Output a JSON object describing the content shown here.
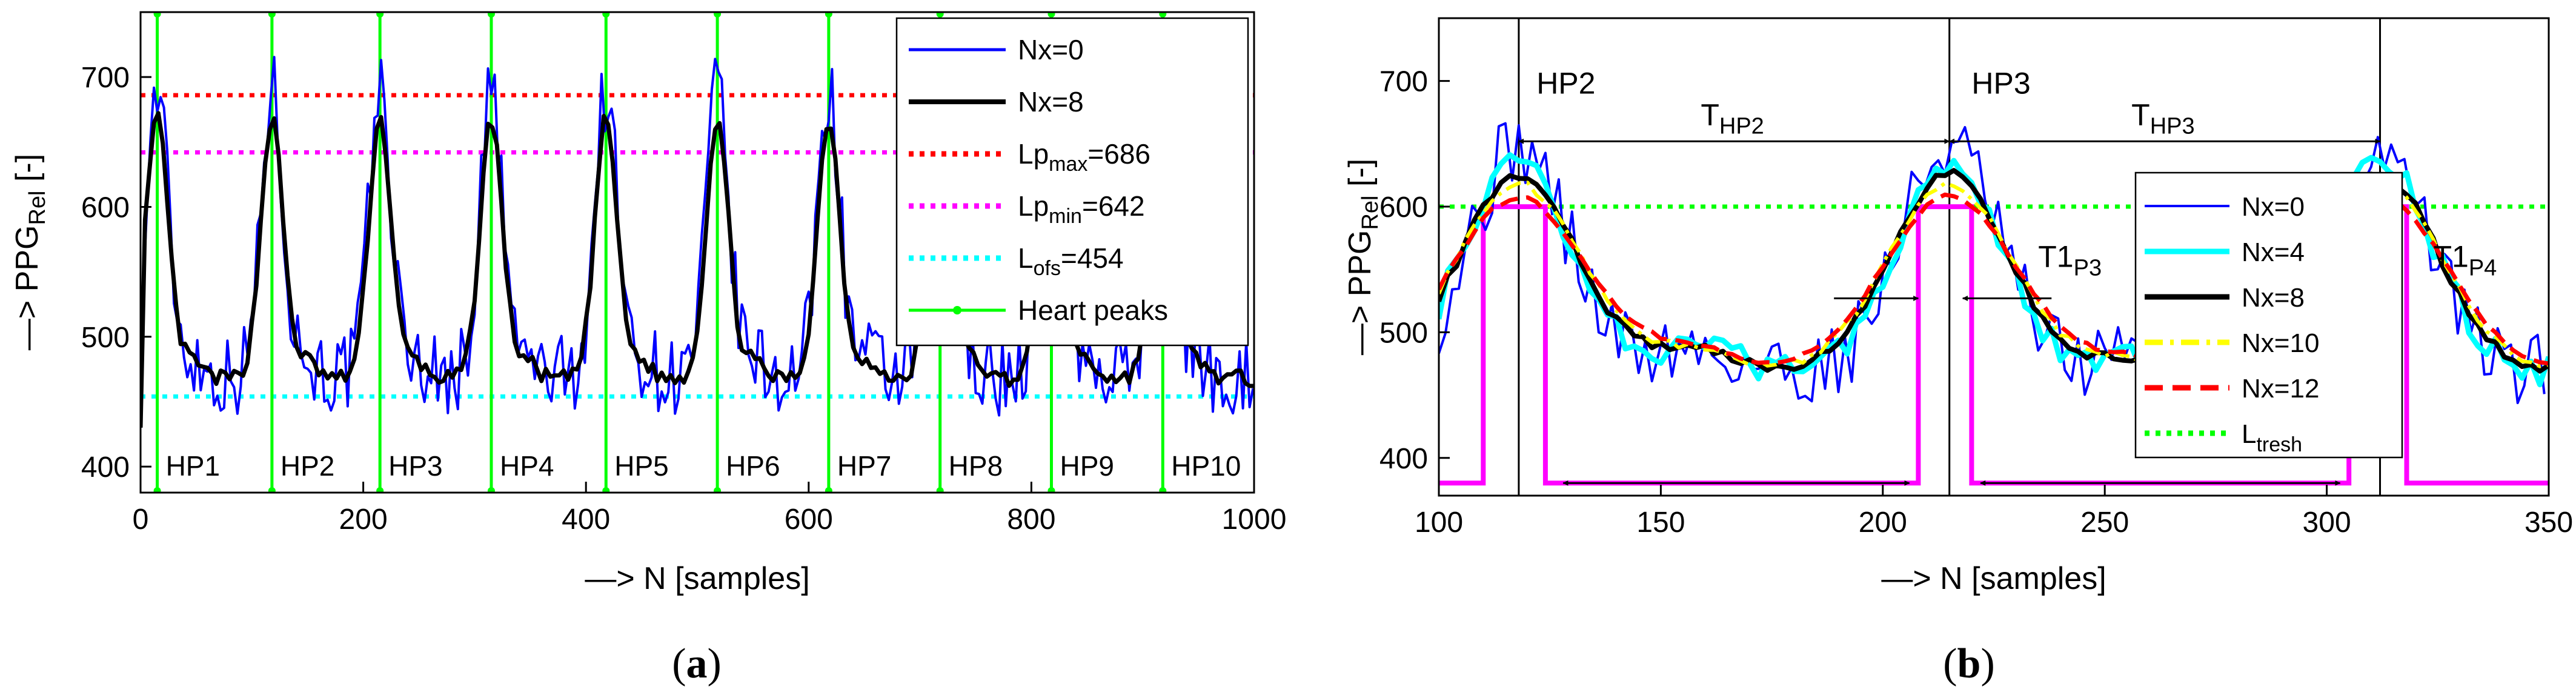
{
  "chart_data": [
    {
      "panel": "a",
      "type": "line",
      "panel_label_open": "(",
      "panel_label": "a",
      "panel_label_close": ")",
      "xlabel": "—> N [samples]",
      "ylabel_prefix": "—> PPG",
      "ylabel_sub": "Rel",
      "ylabel_suffix": " [-]",
      "xlim": [
        0,
        1000
      ],
      "ylim": [
        380,
        750
      ],
      "xticks": [
        "0",
        "200",
        "400",
        "600",
        "800",
        "1000"
      ],
      "xtick_values": [
        0,
        200,
        400,
        600,
        800,
        1000
      ],
      "yticks": [
        "400",
        "500",
        "600",
        "700"
      ],
      "ytick_values": [
        400,
        500,
        600,
        700
      ],
      "heart_peaks": [
        15,
        118,
        215,
        315,
        418,
        518,
        618,
        718,
        818,
        918
      ],
      "hp_labels": [
        "HP1",
        "HP2",
        "HP3",
        "HP4",
        "HP5",
        "HP6",
        "HP7",
        "HP8",
        "HP9",
        "HP10"
      ],
      "hlines": {
        "lp_max": 686,
        "lp_min": 642,
        "l_ofs": 454
      },
      "series": [
        {
          "name": "Nx=0",
          "color": "#0000ff",
          "baseline": 470,
          "peak": 690,
          "noise": 32
        },
        {
          "name": "Nx=8",
          "color": "#000000",
          "baseline": 468,
          "peak": 668,
          "noise": 6
        }
      ],
      "legend": [
        {
          "text": "Nx=0",
          "sub": "",
          "suffix": "",
          "color": "#0000ff",
          "style": "solid"
        },
        {
          "text": "Nx=8",
          "sub": "",
          "suffix": "",
          "color": "#000000",
          "style": "solid"
        },
        {
          "text": "Lp",
          "sub": "max",
          "suffix": "=686",
          "color": "#ff0000",
          "style": "dotted"
        },
        {
          "text": "Lp",
          "sub": "min",
          "suffix": "=642",
          "color": "#ff00ff",
          "style": "dotted"
        },
        {
          "text": "L",
          "sub": "ofs",
          "suffix": "=454",
          "color": "#00ffff",
          "style": "dotted"
        },
        {
          "text": "Heart peaks",
          "sub": "",
          "suffix": "",
          "color": "#00ff00",
          "style": "marker"
        }
      ]
    },
    {
      "panel": "b",
      "type": "line",
      "panel_label_open": "(",
      "panel_label": "b",
      "panel_label_close": ")",
      "xlabel": "—> N [samples]",
      "ylabel_prefix": "—> PPG",
      "ylabel_sub": "Rel",
      "ylabel_suffix": " [-]",
      "xlim": [
        100,
        350
      ],
      "ylim": [
        370,
        750
      ],
      "xticks": [
        "100",
        "150",
        "200",
        "250",
        "300",
        "350"
      ],
      "xtick_values": [
        100,
        150,
        200,
        250,
        300,
        350
      ],
      "yticks": [
        "400",
        "500",
        "600",
        "700"
      ],
      "ytick_values": [
        400,
        500,
        600,
        700
      ],
      "threshold": 600,
      "peak_markers": [
        118,
        215,
        312
      ],
      "annotations": [
        {
          "text": "HP2",
          "sub": "",
          "x": 122,
          "y": 690
        },
        {
          "text": "HP3",
          "sub": "",
          "x": 220,
          "y": 690
        },
        {
          "text": "T",
          "sub": "HP2",
          "x": 159,
          "y": 665
        },
        {
          "text": "T",
          "sub": "HP3",
          "x": 256,
          "y": 665
        },
        {
          "text": "T1",
          "sub": "P3",
          "x": 235,
          "y": 552
        },
        {
          "text": "T1",
          "sub": "P4",
          "x": 324,
          "y": 552
        }
      ],
      "series": [
        {
          "name": "Nx=0",
          "color": "#0000ff"
        },
        {
          "name": "Nx=4",
          "color": "#00ffff"
        },
        {
          "name": "Nx=8",
          "color": "#000000"
        },
        {
          "name": "Nx=10",
          "color": "#ffff00"
        },
        {
          "name": "Nx=12",
          "color": "#ff0000"
        }
      ],
      "legend": [
        {
          "text": "Nx=0",
          "sub": "",
          "color": "#0000ff",
          "style": "solid"
        },
        {
          "text": "Nx=4",
          "sub": "",
          "color": "#00ffff",
          "style": "solid"
        },
        {
          "text": "Nx=8",
          "sub": "",
          "color": "#000000",
          "style": "solid"
        },
        {
          "text": "Nx=10",
          "sub": "",
          "color": "#ffff00",
          "style": "dashdot"
        },
        {
          "text": "Nx=12",
          "sub": "",
          "color": "#ff0000",
          "style": "dashed"
        },
        {
          "text": "L",
          "sub": "tresh",
          "color": "#00ff00",
          "style": "dotted"
        }
      ]
    }
  ]
}
